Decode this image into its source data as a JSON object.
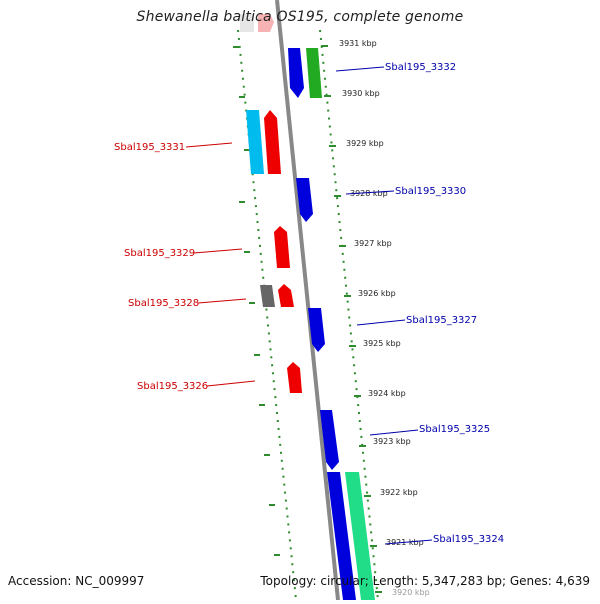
{
  "title": "Shewanella baltica OS195, complete genome",
  "accession": "Accession: NC_009997",
  "summary": "Topology: circular; Length: 5,347,283 bp; Genes: 4,639",
  "colors": {
    "forward_label": "#cc0000",
    "reverse_label": "#0000aa",
    "backbone": "#808080",
    "tick": "#2e8b2e"
  },
  "kbp_ticks": [
    "3931 kbp",
    "3930 kbp",
    "3929 kbp",
    "3928 kbp",
    "3927 kbp",
    "3926 kbp",
    "3925 kbp",
    "3924 kbp",
    "3923 kbp",
    "3922 kbp",
    "3921 kbp",
    "3920 kbp"
  ],
  "gene_labels": [
    {
      "text": "Sbal195_3332",
      "strand": "reverse"
    },
    {
      "text": "Sbal195_3331",
      "strand": "forward"
    },
    {
      "text": "Sbal195_3330",
      "strand": "reverse"
    },
    {
      "text": "Sbal195_3329",
      "strand": "forward"
    },
    {
      "text": "Sbal195_3328",
      "strand": "forward"
    },
    {
      "text": "Sbal195_3327",
      "strand": "reverse"
    },
    {
      "text": "Sbal195_3326",
      "strand": "forward"
    },
    {
      "text": "Sbal195_3325",
      "strand": "reverse"
    },
    {
      "text": "Sbal195_3324",
      "strand": "reverse"
    }
  ]
}
